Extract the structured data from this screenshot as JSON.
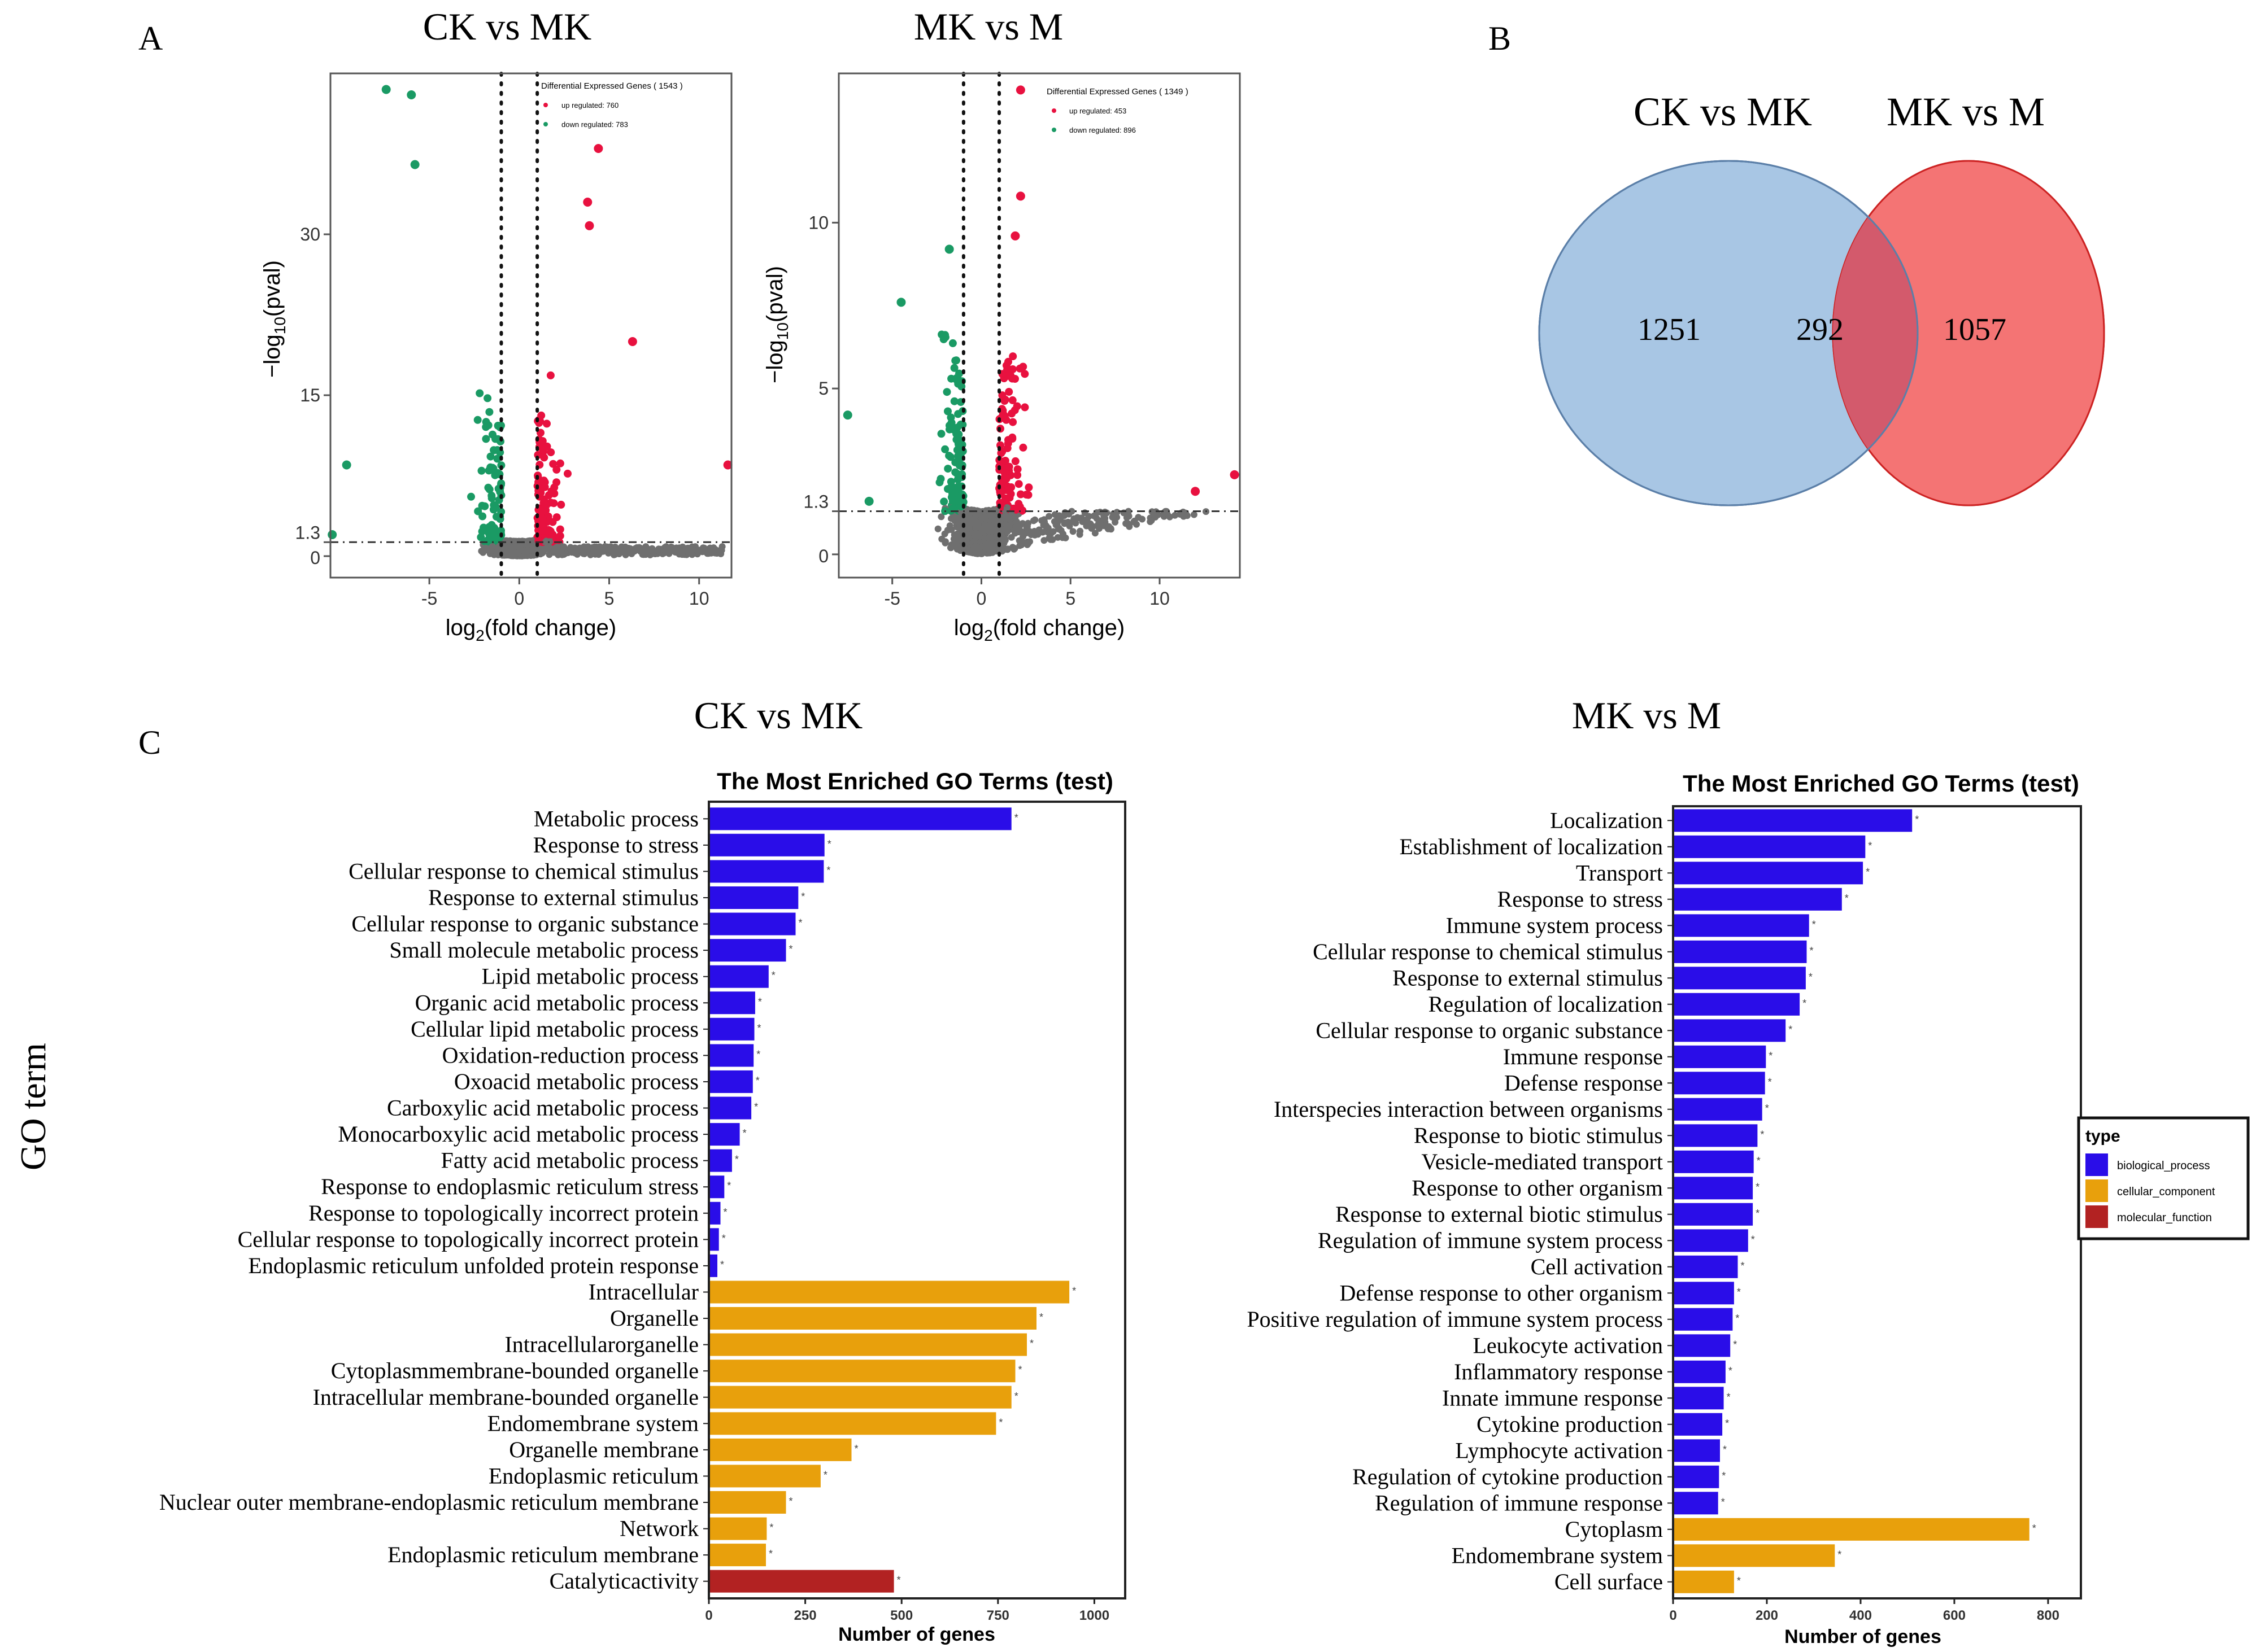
{
  "panel_labels": {
    "a": "A",
    "b": "B",
    "c": "C"
  },
  "y_axis_shared_label": "GO term",
  "colors": {
    "up": "#e8113f",
    "down": "#1a9a64",
    "nonsig": "#6f6f6f",
    "bp": "#2a0de8",
    "cc": "#e8a00c",
    "mf": "#b22222",
    "venn_left": "#a8c6e4",
    "venn_right": "#f47474",
    "venn_overlap": "#d35a6c"
  },
  "chart_data": [
    {
      "type": "scatter",
      "id": "volcano1",
      "title": "CK vs MK",
      "xlabel": "log2(fold change)",
      "ylabel": "−log10(pval)",
      "xlim": [
        -10.5,
        11.8
      ],
      "ylim": [
        -2,
        45
      ],
      "xticks": [
        -5,
        0,
        5,
        10
      ],
      "yticks": [
        0,
        15,
        30
      ],
      "extra_ytick": 1.3,
      "fc_cutoffs": [
        -1,
        1
      ],
      "p_cutoff": 1.3,
      "legend": {
        "title": "Differential Expressed Genes ( 1543 )",
        "up": "up regulated: 760",
        "down": "down regulated: 783"
      },
      "highlight_points": [
        {
          "x": -7.4,
          "y": 43.5,
          "group": "down"
        },
        {
          "x": -6.0,
          "y": 43.0,
          "group": "down"
        },
        {
          "x": -5.8,
          "y": 36.5,
          "group": "down"
        },
        {
          "x": 3.8,
          "y": 33.0,
          "group": "up"
        },
        {
          "x": 4.4,
          "y": 38.0,
          "group": "up"
        },
        {
          "x": 3.9,
          "y": 30.8,
          "group": "up"
        },
        {
          "x": 6.3,
          "y": 20.0,
          "group": "up"
        },
        {
          "x": 11.6,
          "y": 8.5,
          "group": "up"
        },
        {
          "x": -9.6,
          "y": 8.5,
          "group": "down"
        },
        {
          "x": -10.4,
          "y": 2.0,
          "group": "down"
        }
      ]
    },
    {
      "type": "scatter",
      "id": "volcano2",
      "title": "MK vs M",
      "xlabel": "log2(fold change)",
      "ylabel": "−log10(pval)",
      "xlim": [
        -8,
        14.5
      ],
      "ylim": [
        -0.7,
        14.5
      ],
      "xticks": [
        -5,
        0,
        5,
        10
      ],
      "yticks": [
        0,
        5,
        10
      ],
      "extra_ytick": 1.3,
      "fc_cutoffs": [
        -1,
        1
      ],
      "p_cutoff": 1.3,
      "legend": {
        "title": "Differential Expressed Genes ( 1349 )",
        "up": "up regulated: 453",
        "down": "down regulated: 896"
      },
      "highlight_points": [
        {
          "x": 2.2,
          "y": 10.8,
          "group": "up"
        },
        {
          "x": 2.2,
          "y": 14.0,
          "group": "up"
        },
        {
          "x": 1.9,
          "y": 9.6,
          "group": "up"
        },
        {
          "x": -1.8,
          "y": 9.2,
          "group": "down"
        },
        {
          "x": -4.5,
          "y": 7.6,
          "group": "down"
        },
        {
          "x": -7.5,
          "y": 4.2,
          "group": "down"
        },
        {
          "x": 14.2,
          "y": 2.4,
          "group": "up"
        },
        {
          "x": 12.0,
          "y": 1.9,
          "group": "up"
        },
        {
          "x": -6.3,
          "y": 1.6,
          "group": "down"
        }
      ]
    },
    {
      "type": "venn",
      "id": "venn",
      "sets": [
        "CK vs MK",
        "MK vs M"
      ],
      "only_left": "1251",
      "both": "292",
      "only_right": "1057"
    },
    {
      "type": "bar",
      "id": "go1",
      "orientation": "horizontal",
      "header": "CK vs MK",
      "title": "The Most Enriched GO Terms (test)",
      "xlabel": "Number of genes",
      "xlim": [
        0,
        1080
      ],
      "xticks": [
        "0",
        "250",
        "500",
        "750",
        "1000"
      ],
      "tick_values": [
        0,
        250,
        500,
        750,
        1000
      ],
      "categories": [
        "Metabolic process",
        "Response to stress",
        "Cellular response to chemical stimulus",
        "Response to external stimulus",
        "Cellular response to organic substance",
        "Small molecule metabolic process",
        "Lipid metabolic process",
        "Organic acid metabolic process",
        "Cellular lipid metabolic process",
        "Oxidation-reduction process",
        "Oxoacid metabolic process",
        "Carboxylic acid metabolic process",
        "Monocarboxylic acid metabolic process",
        "Fatty acid metabolic process",
        "Response to endoplasmic reticulum stress",
        "Response to topologically incorrect protein",
        "Cellular response to topologically incorrect protein",
        "Endoplasmic reticulum unfolded protein response",
        "Intracellular",
        "Organelle",
        "Intracellularorganelle",
        "Cytoplasmmembrane-bounded organelle",
        "Intracellular membrane-bounded organelle",
        "Endomembrane system",
        "Organelle membrane",
        "Endoplasmic reticulum",
        "Nuclear outer membrane-endoplasmic reticulum membrane",
        "Network",
        "Endoplasmic reticulum membrane",
        "Catalyticactivity"
      ],
      "values": [
        785,
        300,
        298,
        232,
        225,
        200,
        155,
        120,
        118,
        116,
        114,
        110,
        80,
        60,
        40,
        30,
        26,
        22,
        935,
        850,
        825,
        795,
        785,
        745,
        370,
        290,
        200,
        150,
        148,
        480
      ],
      "types": [
        "bp",
        "bp",
        "bp",
        "bp",
        "bp",
        "bp",
        "bp",
        "bp",
        "bp",
        "bp",
        "bp",
        "bp",
        "bp",
        "bp",
        "bp",
        "bp",
        "bp",
        "bp",
        "cc",
        "cc",
        "cc",
        "cc",
        "cc",
        "cc",
        "cc",
        "cc",
        "cc",
        "cc",
        "cc",
        "mf"
      ],
      "marker": "*"
    },
    {
      "type": "bar",
      "id": "go2",
      "orientation": "horizontal",
      "header": "MK vs M",
      "title": "The Most Enriched GO Terms (test)",
      "xlabel": "Number of genes",
      "xlim": [
        0,
        870
      ],
      "xticks": [
        "0",
        "200",
        "400",
        "600",
        "800"
      ],
      "tick_values": [
        0,
        200,
        400,
        600,
        800
      ],
      "categories": [
        "Localization",
        "Establishment of localization",
        "Transport",
        "Response to stress",
        "Immune system process",
        "Cellular response to chemical stimulus",
        "Response to external stimulus",
        "Regulation of localization",
        "Cellular response to organic substance",
        "Immune response",
        "Defense response",
        "Interspecies interaction between organisms",
        "Response to biotic stimulus",
        "Vesicle-mediated transport",
        "Response to other organism",
        "Response to external biotic stimulus",
        "Regulation of immune system process",
        "Cell activation",
        "Defense response to other organism",
        "Positive regulation of immune system process",
        "Leukocyte activation",
        "Inflammatory response",
        "Innate immune response",
        "Cytokine production",
        "Lymphocyte activation",
        "Regulation of cytokine production",
        "Regulation of immune response",
        "Cytoplasm",
        "Endomembrane system",
        "Cell surface"
      ],
      "values": [
        510,
        410,
        405,
        360,
        290,
        285,
        283,
        270,
        240,
        198,
        196,
        190,
        180,
        172,
        170,
        170,
        160,
        138,
        130,
        127,
        122,
        112,
        108,
        105,
        100,
        98,
        96,
        760,
        345,
        130
      ],
      "types": [
        "bp",
        "bp",
        "bp",
        "bp",
        "bp",
        "bp",
        "bp",
        "bp",
        "bp",
        "bp",
        "bp",
        "bp",
        "bp",
        "bp",
        "bp",
        "bp",
        "bp",
        "bp",
        "bp",
        "bp",
        "bp",
        "bp",
        "bp",
        "bp",
        "bp",
        "bp",
        "bp",
        "cc",
        "cc",
        "cc"
      ],
      "marker": "*",
      "legend": {
        "title": "type",
        "items": [
          {
            "label": "biological_process",
            "type": "bp"
          },
          {
            "label": "cellular_component",
            "type": "cc"
          },
          {
            "label": "molecular_function",
            "type": "mf"
          }
        ]
      }
    }
  ]
}
